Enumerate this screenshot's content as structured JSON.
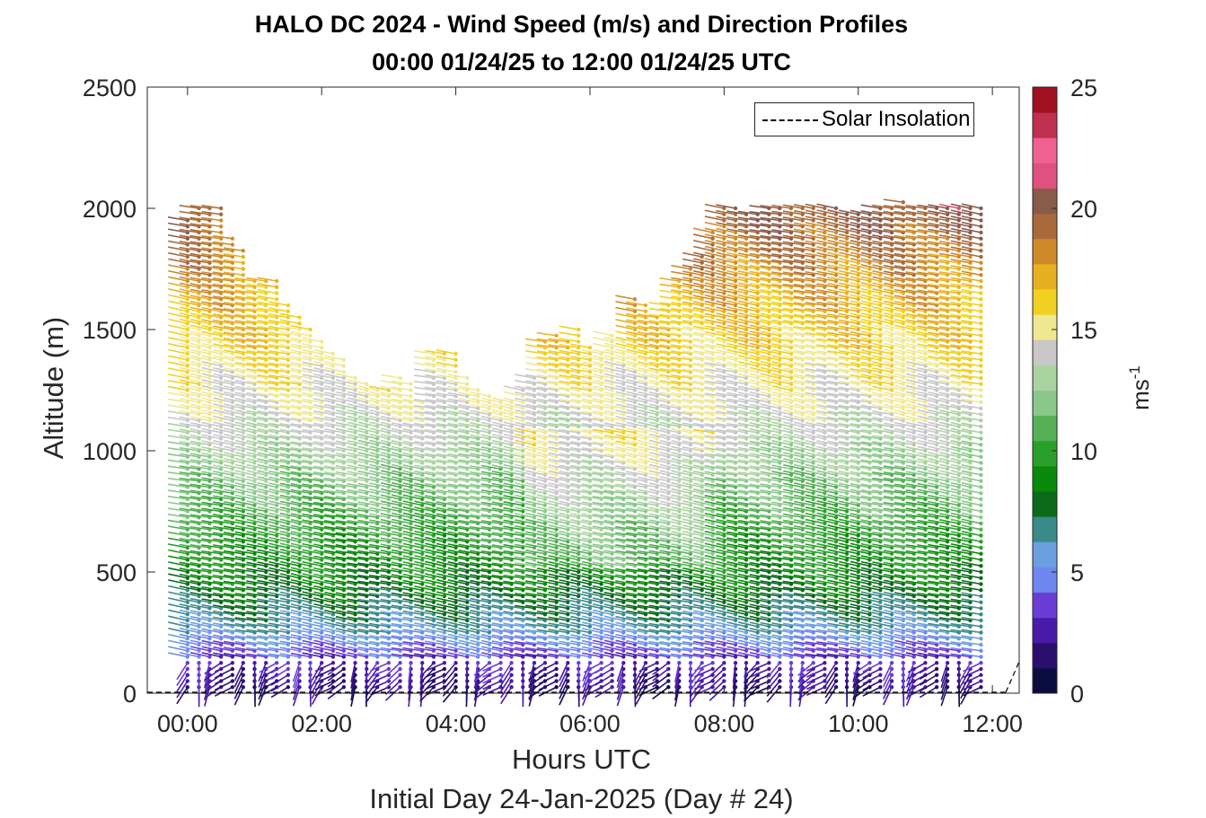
{
  "chart_data": {
    "type": "wind-barb-profile",
    "title": "HALO DC 2024 - Wind Speed (m/s) and Direction Profiles",
    "subtitle": "00:00 01/24/25 to 12:00 01/24/25  UTC",
    "xlabel": "Hours UTC",
    "xlabel2": "Initial Day 24-Jan-2025 (Day # 24)",
    "ylabel": "Altitude (m)",
    "xlim_hours": [
      -0.6,
      12.4
    ],
    "ylim": [
      0,
      2500
    ],
    "xticks": [
      "00:00",
      "02:00",
      "04:00",
      "06:00",
      "08:00",
      "10:00",
      "12:00"
    ],
    "yticks": [
      "0",
      "500",
      "1000",
      "1500",
      "2000",
      "2500"
    ],
    "colorbar": {
      "label": "ms",
      "label_sup": "-1",
      "range": [
        0,
        25
      ],
      "ticks": [
        "0",
        "5",
        "10",
        "15",
        "20",
        "25"
      ],
      "colors": [
        "#0b0c3f",
        "#2a0f6e",
        "#4a1aa8",
        "#6a3ed6",
        "#6f86f0",
        "#6aa0e0",
        "#3a8a8a",
        "#0a6a1a",
        "#0a8a0a",
        "#2aa02a",
        "#55b055",
        "#8ac88a",
        "#aad2a0",
        "#c8c8c8",
        "#f0e890",
        "#f0d020",
        "#e8b020",
        "#d08a2a",
        "#a86a3a",
        "#8a5a4a",
        "#e05080",
        "#f06090",
        "#c03050",
        "#a01020"
      ]
    },
    "legend": {
      "entries": [
        "Solar Insolation"
      ],
      "placement": "top-right"
    },
    "time_hours": [
      0.0,
      0.17,
      0.33,
      0.5,
      0.67,
      0.83,
      1.0,
      1.17,
      1.33,
      1.5,
      1.67,
      1.83,
      2.0,
      2.17,
      2.33,
      2.5,
      2.67,
      2.83,
      3.0,
      3.17,
      3.33,
      3.5,
      3.67,
      3.83,
      4.0,
      4.17,
      4.33,
      4.5,
      4.67,
      4.83,
      5.0,
      5.17,
      5.33,
      5.5,
      5.67,
      5.83,
      6.0,
      6.17,
      6.33,
      6.5,
      6.67,
      6.83,
      7.0,
      7.17,
      7.33,
      7.5,
      7.67,
      7.83,
      8.0,
      8.17,
      8.33,
      8.5,
      8.67,
      8.83,
      9.0,
      9.17,
      9.33,
      9.5,
      9.67,
      9.83,
      10.0,
      10.17,
      10.33,
      10.5,
      10.67,
      10.83,
      11.0,
      11.17,
      11.33,
      11.5,
      11.67,
      11.83
    ],
    "top_altitude_m": [
      1960,
      2010,
      2010,
      2000,
      1880,
      1840,
      1700,
      1720,
      1720,
      1600,
      1550,
      1500,
      1460,
      1400,
      1380,
      1320,
      1280,
      1260,
      1250,
      1300,
      1280,
      1200,
      1400,
      1420,
      1400,
      1320,
      1260,
      1240,
      1200,
      1220,
      1260,
      1300,
      1460,
      1480,
      1460,
      1500,
      1440,
      1400,
      1480,
      1460,
      1640,
      1600,
      1560,
      1620,
      1700,
      1760,
      1800,
      1900,
      2000,
      2000,
      1980,
      1980,
      2000,
      2000,
      2000,
      2000,
      2000,
      2000,
      2000,
      1980,
      1980,
      1980,
      2000,
      2000,
      2040,
      2020,
      2020,
      2020,
      2020,
      2020,
      2020,
      2020
    ]
  }
}
